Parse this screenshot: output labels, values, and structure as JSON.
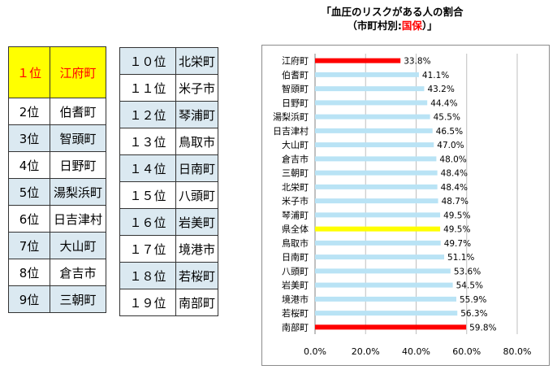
{
  "ranking": {
    "left": [
      {
        "rank": "１位",
        "name": "江府町"
      },
      {
        "rank": "2位",
        "name": "伯耆町"
      },
      {
        "rank": "3位",
        "name": "智頭町"
      },
      {
        "rank": "4位",
        "name": "日野町"
      },
      {
        "rank": "5位",
        "name": "湯梨浜町"
      },
      {
        "rank": "6位",
        "name": "日吉津村"
      },
      {
        "rank": "7位",
        "name": "大山町"
      },
      {
        "rank": "8位",
        "name": "倉吉市"
      },
      {
        "rank": "9位",
        "name": "三朝町"
      }
    ],
    "right": [
      {
        "rank": "１０位",
        "name": "北栄町"
      },
      {
        "rank": "１１位",
        "name": "米子市"
      },
      {
        "rank": "１２位",
        "name": "琴浦町"
      },
      {
        "rank": "１３位",
        "name": "鳥取市"
      },
      {
        "rank": "１４位",
        "name": "日南町"
      },
      {
        "rank": "１５位",
        "name": "八頭町"
      },
      {
        "rank": "１６位",
        "name": "岩美町"
      },
      {
        "rank": "１７位",
        "name": "境港市"
      },
      {
        "rank": "１８位",
        "name": "若桜町"
      },
      {
        "rank": "１９位",
        "name": "南部町"
      }
    ]
  },
  "colors": {
    "first_place_bg": "#ffff00",
    "first_place_text": "#ff0000",
    "shade": "#dbe9f1",
    "bar_default": "#b9e3f5",
    "bar_highlight": "#ff0000",
    "bar_average": "#ffff00"
  },
  "chart_data": {
    "type": "bar",
    "orientation": "horizontal",
    "title_line1": "「血圧のリスクがある人の割合",
    "title_line2_prefix": "（市町村別:",
    "title_line2_highlight": "国保",
    "title_line2_suffix": "）」",
    "categories": [
      "江府町",
      "伯耆町",
      "智頭町",
      "日野町",
      "湯梨浜町",
      "日吉津村",
      "大山町",
      "倉吉市",
      "三朝町",
      "北栄町",
      "米子市",
      "琴浦町",
      "県全体",
      "鳥取市",
      "日南町",
      "八頭町",
      "岩美町",
      "境港市",
      "若桜町",
      "南部町"
    ],
    "values": [
      33.8,
      41.1,
      43.2,
      44.4,
      45.5,
      46.5,
      47.0,
      48.0,
      48.4,
      48.4,
      48.7,
      49.5,
      49.5,
      49.7,
      51.1,
      53.6,
      54.5,
      55.9,
      56.3,
      59.8
    ],
    "value_labels": [
      "33.8%",
      "41.1%",
      "43.2%",
      "44.4%",
      "45.5%",
      "46.5%",
      "47.0%",
      "48.0%",
      "48.4%",
      "48.4%",
      "48.7%",
      "49.5%",
      "49.5%",
      "49.7%",
      "51.1%",
      "53.6%",
      "54.5%",
      "55.9%",
      "56.3%",
      "59.8%"
    ],
    "bar_colors": [
      "highlight",
      "default",
      "default",
      "default",
      "default",
      "default",
      "default",
      "default",
      "default",
      "default",
      "default",
      "default",
      "average",
      "default",
      "default",
      "default",
      "default",
      "default",
      "default",
      "highlight"
    ],
    "xlim": [
      0,
      80
    ],
    "xticks": [
      "0.0%",
      "20.0%",
      "40.0%",
      "60.0%",
      "80.0%"
    ],
    "grid": true
  }
}
